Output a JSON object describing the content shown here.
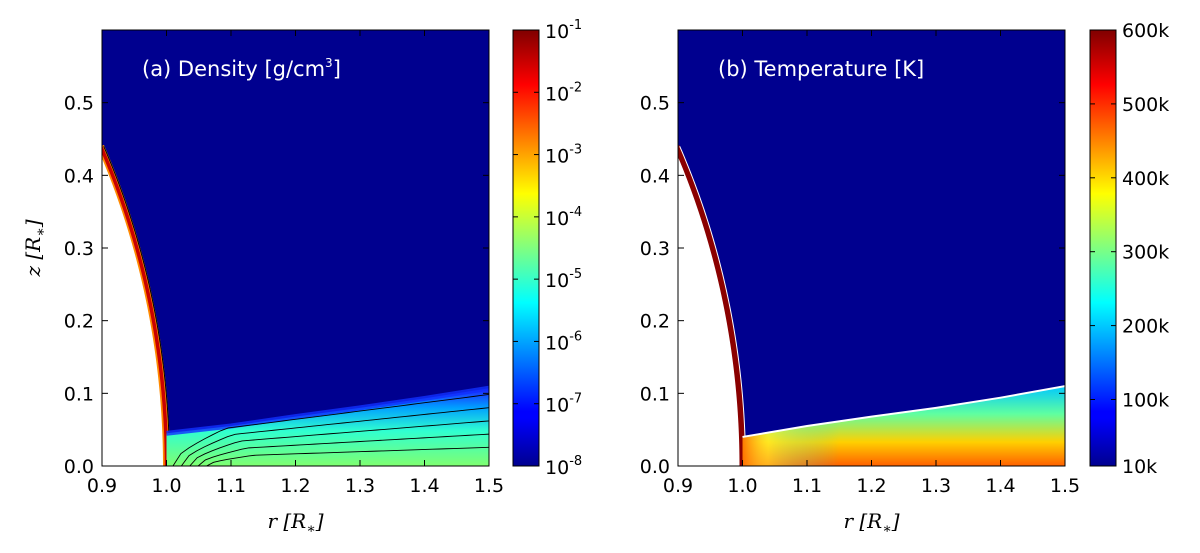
{
  "chart_data": [
    {
      "type": "heatmap",
      "title": "(a) Density [g/cm³]",
      "title_main": "(a) Density [g/cm",
      "title_sup": "3",
      "title_end": "]",
      "xlabel": "r [R*]",
      "ylabel": "z [R*]",
      "xlim": [
        0.9,
        1.5
      ],
      "ylim": [
        0.0,
        0.6
      ],
      "x_ticks": [
        "0.9",
        "1.0",
        "1.1",
        "1.2",
        "1.3",
        "1.4",
        "1.5"
      ],
      "y_ticks": [
        "0.0",
        "0.1",
        "0.2",
        "0.3",
        "0.4",
        "0.5"
      ],
      "colorbar": {
        "scale": "log",
        "range": [
          1e-08,
          0.1
        ],
        "colormap": "jet",
        "ticks": [
          {
            "base": "10",
            "exp": "-1"
          },
          {
            "base": "10",
            "exp": "-2"
          },
          {
            "base": "10",
            "exp": "-3"
          },
          {
            "base": "10",
            "exp": "-4"
          },
          {
            "base": "10",
            "exp": "-5"
          },
          {
            "base": "10",
            "exp": "-6"
          },
          {
            "base": "10",
            "exp": "-7"
          },
          {
            "base": "10",
            "exp": "-8"
          }
        ]
      },
      "features": {
        "background_value": 1e-08,
        "stellar_surface_value": 0.1,
        "disk_top_z": [
          [
            1.0,
            0.045
          ],
          [
            1.1,
            0.055
          ],
          [
            1.2,
            0.068
          ],
          [
            1.3,
            0.08
          ],
          [
            1.4,
            0.093
          ],
          [
            1.5,
            0.107
          ]
        ],
        "disk_midplane_value": 0.0001,
        "contour_count": 5
      }
    },
    {
      "type": "heatmap",
      "title": "(b) Temperature [K]",
      "xlabel": "r [R*]",
      "ylabel": "",
      "xlim": [
        0.9,
        1.5
      ],
      "ylim": [
        0.0,
        0.6
      ],
      "x_ticks": [
        "0.9",
        "1.0",
        "1.1",
        "1.2",
        "1.3",
        "1.4",
        "1.5"
      ],
      "y_ticks": [
        "0.0",
        "0.1",
        "0.2",
        "0.3",
        "0.4",
        "0.5"
      ],
      "colorbar": {
        "scale": "linear",
        "range": [
          10000,
          600000
        ],
        "colormap": "jet",
        "ticks": [
          "600k",
          "500k",
          "400k",
          "300k",
          "200k",
          "100k",
          "10k"
        ],
        "tick_values": [
          600000,
          500000,
          400000,
          300000,
          200000,
          100000,
          10000
        ]
      },
      "features": {
        "background_value": 10000,
        "stellar_surface_value": 600000,
        "disk_top_z": [
          [
            1.0,
            0.04
          ],
          [
            1.1,
            0.055
          ],
          [
            1.2,
            0.068
          ],
          [
            1.3,
            0.08
          ],
          [
            1.4,
            0.094
          ],
          [
            1.5,
            0.11
          ]
        ],
        "disk_midplane_value": 500000
      }
    }
  ]
}
